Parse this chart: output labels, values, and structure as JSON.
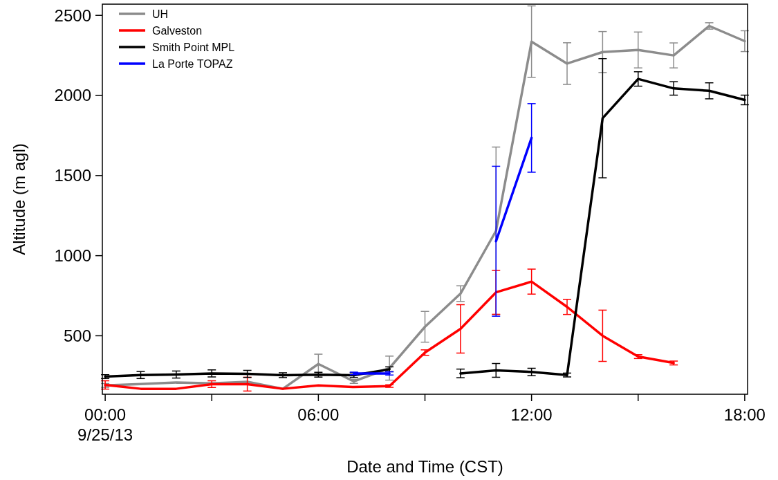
{
  "chart_data": {
    "type": "line",
    "xlabel": "Date and Time (CST)",
    "ylabel": "Altitude (m agl)",
    "xlim": [
      -0.08,
      18.08
    ],
    "ylim": [
      135,
      2570
    ],
    "xticks": [
      {
        "value": 0,
        "label": "00:00\n9/25/13"
      },
      {
        "value": 3,
        "label": null
      },
      {
        "value": 6,
        "label": "06:00"
      },
      {
        "value": 9,
        "label": null
      },
      {
        "value": 12,
        "label": "12:00"
      },
      {
        "value": 15,
        "label": null
      },
      {
        "value": 18,
        "label": "18:00"
      }
    ],
    "yticks": [
      500,
      1000,
      1500,
      2000,
      2500
    ],
    "grid": false,
    "legend": "top left",
    "marker": "none",
    "line_style": "solid",
    "x": [
      0,
      1,
      2,
      3,
      4,
      5,
      6,
      7,
      8,
      9,
      10,
      11,
      12,
      13,
      14,
      15,
      16,
      17,
      18
    ],
    "series": [
      {
        "name": "UH",
        "color": "#8c8c8c",
        "values": [
          190,
          199,
          208,
          203,
          213,
          169,
          324,
          215,
          298,
          556,
          763,
          1155,
          2336,
          2199,
          2271,
          2284,
          2250,
          2434,
          2339
        ],
        "errors": [
          12,
          null,
          null,
          null,
          null,
          null,
          61,
          12,
          75,
          96,
          49,
          523,
          223,
          130,
          128,
          112,
          78,
          20,
          65
        ]
      },
      {
        "name": "Galveston",
        "color": "#ff0000",
        "values": [
          193,
          169,
          169,
          198,
          198,
          169,
          190,
          180,
          186,
          395,
          543,
          771,
          838,
          680,
          500,
          370,
          330,
          null,
          null
        ],
        "errors": [
          26,
          null,
          null,
          21,
          43,
          null,
          null,
          null,
          8,
          17,
          151,
          137,
          78,
          47,
          160,
          12,
          12,
          null,
          null
        ]
      },
      {
        "name": "Smith Point MPL",
        "color": "#000000",
        "values": [
          245,
          255,
          258,
          265,
          262,
          254,
          257,
          254,
          291,
          null,
          265,
          284,
          274,
          255,
          1858,
          2103,
          2044,
          2029,
          1972
        ],
        "errors": [
          12,
          22,
          22,
          22,
          22,
          15,
          15,
          15,
          15,
          null,
          27,
          43,
          23,
          12,
          372,
          45,
          42,
          50,
          30
        ]
      },
      {
        "name": "La Porte TOPAZ",
        "color": "#0000ff",
        "values": [
          null,
          null,
          null,
          null,
          null,
          null,
          null,
          265,
          265,
          null,
          null,
          1090,
          1735,
          null,
          null,
          null,
          null,
          null,
          null
        ],
        "errors": [
          null,
          null,
          null,
          null,
          null,
          null,
          null,
          8,
          10,
          null,
          null,
          468,
          214,
          null,
          null,
          null,
          null,
          null,
          null
        ]
      }
    ]
  }
}
